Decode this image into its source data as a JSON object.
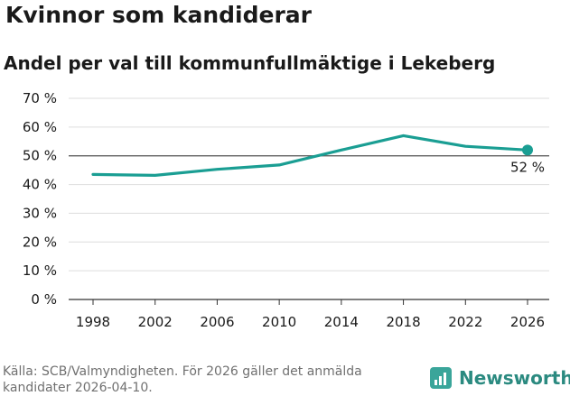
{
  "header": {
    "title": "Kvinnor som kandiderar",
    "subtitle": "Andel per val till kommunfullmäktige i Lekeberg"
  },
  "footer": {
    "source": "Källa: SCB/Valmyndigheten. För 2026 gäller det anmälda kandidater 2026-04-10.",
    "brand": "Newsworthy"
  },
  "colors": {
    "line": "#1a9e93",
    "reference": "#555555",
    "grid": "#dddddd"
  },
  "chart_data": {
    "type": "line",
    "title": "Kvinnor som kandiderar",
    "subtitle": "Andel per val till kommunfullmäktige i Lekeberg",
    "xlabel": "",
    "ylabel": "",
    "x": [
      1998,
      2002,
      2006,
      2010,
      2014,
      2018,
      2022,
      2026
    ],
    "values": [
      43.5,
      43.2,
      45.3,
      46.8,
      52.0,
      57.0,
      53.3,
      52.0
    ],
    "ylim": [
      0,
      70
    ],
    "xlim": [
      1998,
      2026
    ],
    "yticks": [
      0,
      10,
      20,
      30,
      40,
      50,
      60,
      70
    ],
    "ytick_labels": [
      "0 %",
      "10 %",
      "20 %",
      "30 %",
      "40 %",
      "50 %",
      "60 %",
      "70 %"
    ],
    "xticks": [
      1998,
      2002,
      2006,
      2010,
      2014,
      2018,
      2022,
      2026
    ],
    "xtick_labels": [
      "1998",
      "2002",
      "2006",
      "2010",
      "2014",
      "2018",
      "2022",
      "2026"
    ],
    "reference_line": 50,
    "end_label": "52 %",
    "grid": true
  }
}
